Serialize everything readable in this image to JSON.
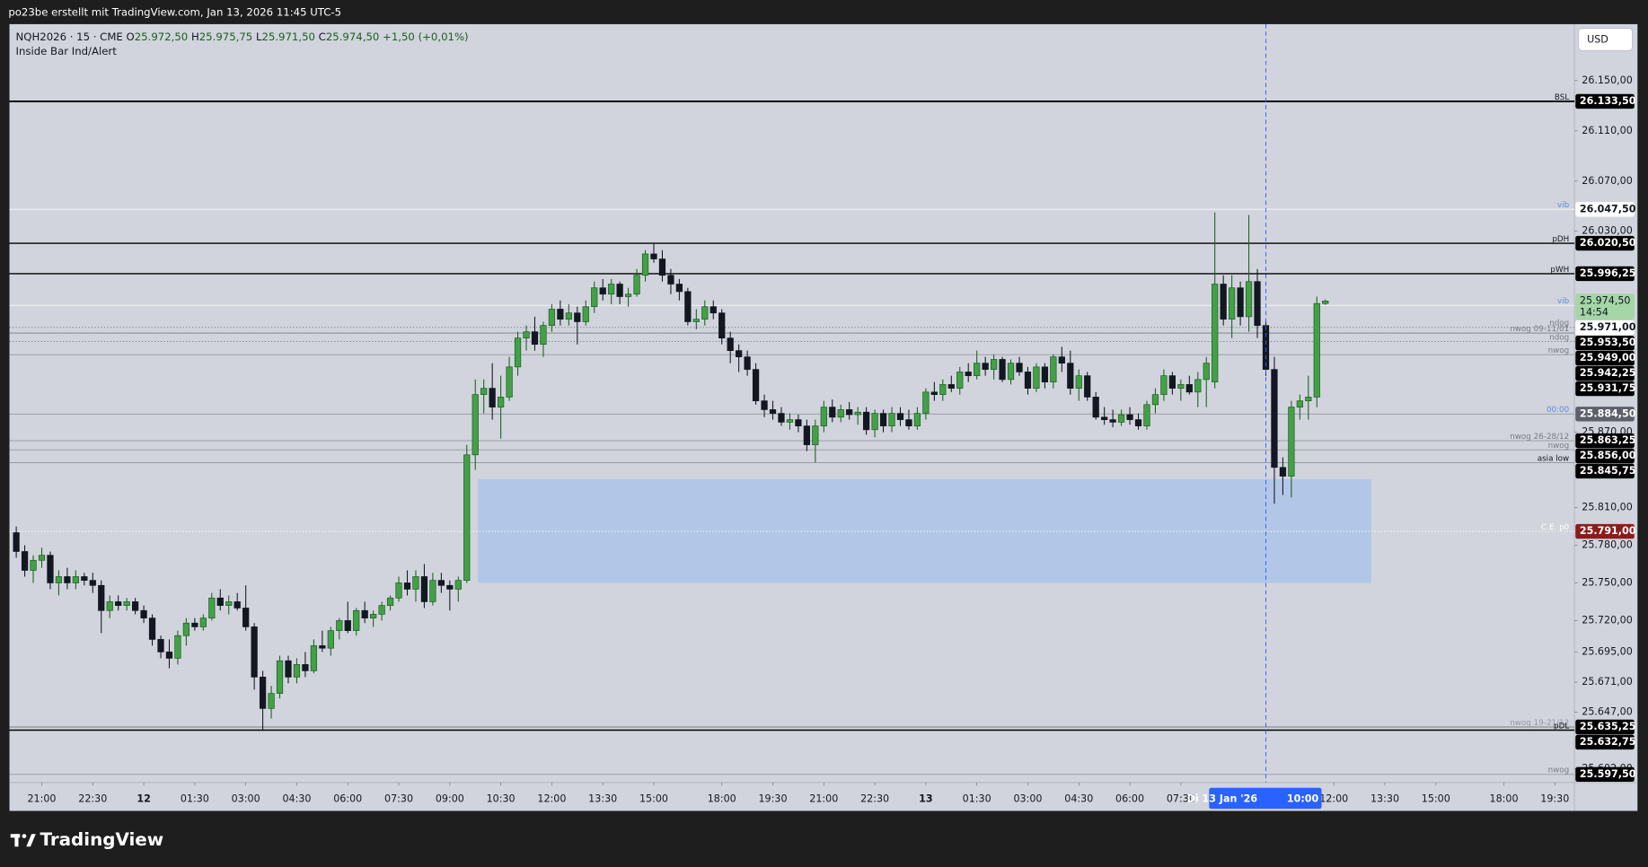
{
  "header": {
    "title": "po23be erstellt mit TradingView.com, Jan 13, 2026 11:45 UTC-5"
  },
  "legend": {
    "symbol": "NQH2026 · 15 · CME",
    "items": [
      {
        "key": "O",
        "value": "25.972,50"
      },
      {
        "key": "H",
        "value": "25.975,75"
      },
      {
        "key": "L",
        "value": "25.971,50"
      },
      {
        "key": "C",
        "value": "25.974,50"
      }
    ],
    "change": "+1,50 (+0,01%)",
    "indicator": "Inside Bar Ind/Alert"
  },
  "currency": "USD",
  "branding": "TradingView",
  "chart_data": {
    "type": "candlestick",
    "up_color": "#43a047",
    "down_color": "#131722",
    "grid": false,
    "open": [
      25790,
      25775,
      25760,
      25768,
      25772,
      25750,
      25755,
      25750,
      25755,
      25752,
      25748,
      25728,
      25735,
      25732,
      25735,
      25728,
      25722,
      25705,
      25695,
      25690,
      25708,
      25718,
      25715,
      25722,
      25738,
      25732,
      25735,
      25730,
      25715,
      25675,
      25650,
      25662,
      25688,
      25675,
      25685,
      25680,
      25700,
      25698,
      25712,
      25720,
      25712,
      25728,
      25722,
      25725,
      25732,
      25738,
      25750,
      25745,
      25755,
      25735,
      25752,
      25748,
      25745,
      25752,
      25852,
      25900,
      25905,
      25890,
      25898,
      25922,
      25945,
      25950,
      25940,
      25955,
      25968,
      25960,
      25965,
      25958,
      25970,
      25985,
      25980,
      25988,
      25978,
      25980,
      25995,
      26012,
      26008,
      25995,
      25988,
      25982,
      25958,
      25960,
      25970,
      25965,
      25945,
      25935,
      25930,
      25920,
      25895,
      25888,
      25885,
      25878,
      25880,
      25875,
      25860,
      25875,
      25890,
      25882,
      25888,
      25884,
      25886,
      25872,
      25885,
      25875,
      25885,
      25880,
      25875,
      25885,
      25902,
      25900,
      25908,
      25905,
      25918,
      25915,
      25925,
      25920,
      25928,
      25912,
      25925,
      25918,
      25905,
      25922,
      25910,
      25930,
      25925,
      25905,
      25915,
      25898,
      25882,
      25880,
      25878,
      25884,
      25880,
      25875,
      25892,
      25900,
      25915,
      25905,
      25908,
      25902,
      25912,
      25910,
      25988,
      25960,
      25985,
      25962,
      25990,
      25955,
      25920,
      25842,
      25835,
      25890,
      25895,
      25898,
      25972.5
    ],
    "high": [
      25795,
      25780,
      25772,
      25778,
      25775,
      25760,
      25762,
      25760,
      25758,
      25758,
      25752,
      25740,
      25740,
      25738,
      25738,
      25732,
      25725,
      25708,
      25705,
      25712,
      25722,
      25722,
      25725,
      25742,
      25745,
      25740,
      25742,
      25748,
      25718,
      25680,
      25668,
      25692,
      25692,
      25690,
      25695,
      25705,
      25712,
      25715,
      25722,
      25735,
      25730,
      25735,
      25728,
      25735,
      25740,
      25755,
      25760,
      25760,
      25765,
      25758,
      25758,
      25752,
      25755,
      25860,
      25912,
      25912,
      25925,
      25915,
      25930,
      25950,
      25955,
      25962,
      25958,
      25972,
      25975,
      25972,
      25970,
      25975,
      25990,
      25992,
      25992,
      25990,
      25985,
      26000,
      26015,
      26020,
      26015,
      26000,
      25992,
      25985,
      25968,
      25975,
      25975,
      25968,
      25950,
      25940,
      25935,
      25925,
      25900,
      25895,
      25890,
      25885,
      25884,
      25880,
      25880,
      25895,
      25896,
      25892,
      25894,
      25890,
      25890,
      25888,
      25888,
      25890,
      25890,
      25888,
      25890,
      25905,
      25910,
      25912,
      25915,
      25922,
      25925,
      25935,
      25930,
      25932,
      25930,
      25928,
      25930,
      25922,
      25925,
      25925,
      25932,
      25938,
      25935,
      25920,
      25918,
      25902,
      25890,
      25888,
      25888,
      25890,
      25885,
      25895,
      25905,
      25920,
      25918,
      25912,
      25915,
      25918,
      25930,
      26045,
      25995,
      25995,
      25990,
      26043,
      26000,
      25960,
      25930,
      25850,
      25895,
      25900,
      25915,
      25978,
      25975.75
    ],
    "low": [
      25770,
      25755,
      25750,
      25762,
      25745,
      25740,
      25745,
      25745,
      25748,
      25742,
      25710,
      25722,
      25728,
      25728,
      25725,
      25718,
      25700,
      25690,
      25682,
      25685,
      25700,
      25712,
      25712,
      25720,
      25728,
      25725,
      25728,
      25712,
      25665,
      25633,
      25642,
      25658,
      25670,
      25670,
      25675,
      25678,
      25695,
      25692,
      25705,
      25710,
      25708,
      25718,
      25715,
      25720,
      25728,
      25735,
      25740,
      25735,
      25730,
      25732,
      25742,
      25728,
      25735,
      25750,
      25840,
      25885,
      25880,
      25865,
      25895,
      25915,
      25935,
      25935,
      25930,
      25950,
      25955,
      25955,
      25940,
      25955,
      25965,
      25975,
      25972,
      25972,
      25970,
      25978,
      25990,
      26005,
      25990,
      25980,
      25975,
      25955,
      25952,
      25955,
      25960,
      25940,
      25925,
      25918,
      25915,
      25892,
      25882,
      25880,
      25875,
      25872,
      25870,
      25855,
      25846,
      25870,
      25878,
      25878,
      25880,
      25876,
      25868,
      25866,
      25870,
      25870,
      25875,
      25872,
      25872,
      25880,
      25895,
      25895,
      25902,
      25900,
      25910,
      25912,
      25915,
      25912,
      25910,
      25908,
      25915,
      25900,
      25902,
      25905,
      25905,
      25918,
      25900,
      25895,
      25895,
      25880,
      25876,
      25874,
      25875,
      25876,
      25872,
      25872,
      25885,
      25895,
      25900,
      25895,
      25900,
      25890,
      25890,
      25905,
      25955,
      25945,
      25955,
      25950,
      25945,
      25915,
      25813,
      25820,
      25818,
      25880,
      25880,
      25890,
      25971.5
    ],
    "close": [
      25775,
      25760,
      25768,
      25772,
      25750,
      25755,
      25750,
      25755,
      25752,
      25748,
      25728,
      25735,
      25732,
      25735,
      25728,
      25722,
      25705,
      25695,
      25690,
      25708,
      25718,
      25715,
      25722,
      25738,
      25732,
      25735,
      25730,
      25715,
      25675,
      25650,
      25662,
      25688,
      25675,
      25685,
      25680,
      25700,
      25698,
      25712,
      25720,
      25712,
      25728,
      25722,
      25725,
      25732,
      25738,
      25750,
      25745,
      25755,
      25735,
      25752,
      25748,
      25745,
      25752,
      25852,
      25900,
      25905,
      25890,
      25898,
      25922,
      25945,
      25950,
      25940,
      25955,
      25968,
      25960,
      25965,
      25958,
      25970,
      25985,
      25980,
      25988,
      25978,
      25980,
      25995,
      26012,
      26008,
      25995,
      25988,
      25982,
      25958,
      25960,
      25970,
      25965,
      25945,
      25935,
      25930,
      25920,
      25895,
      25888,
      25885,
      25878,
      25880,
      25875,
      25860,
      25875,
      25890,
      25882,
      25888,
      25884,
      25886,
      25872,
      25885,
      25875,
      25885,
      25880,
      25875,
      25885,
      25902,
      25900,
      25908,
      25905,
      25918,
      25915,
      25925,
      25920,
      25928,
      25912,
      25925,
      25918,
      25905,
      25922,
      25910,
      25930,
      25925,
      25905,
      25915,
      25898,
      25882,
      25880,
      25878,
      25884,
      25880,
      25875,
      25892,
      25900,
      25915,
      25905,
      25908,
      25902,
      25912,
      25925,
      25988,
      25960,
      25985,
      25962,
      25990,
      25955,
      25920,
      25842,
      25835,
      25890,
      25895,
      25898,
      25972.5,
      25974.5
    ],
    "xlim": [
      -0.8,
      183.3
    ],
    "ylim": [
      25591,
      26195
    ],
    "yticks": [
      {
        "value": 26150,
        "label": "26.150,00"
      },
      {
        "value": 26110,
        "label": "26.110,00"
      },
      {
        "value": 26070,
        "label": "26.070,00"
      },
      {
        "value": 26030,
        "label": "26.030,00"
      },
      {
        "value": 25870,
        "label": "25.870,00"
      },
      {
        "value": 25810,
        "label": "25.810,00"
      },
      {
        "value": 25780,
        "label": "25.780,00"
      },
      {
        "value": 25750,
        "label": "25.750,00"
      },
      {
        "value": 25720,
        "label": "25.720,00"
      },
      {
        "value": 25695,
        "label": "25.695,00"
      },
      {
        "value": 25671,
        "label": "25.671,00"
      },
      {
        "value": 25647,
        "label": "25.647,00"
      },
      {
        "value": 25602,
        "label": "25.602,00"
      }
    ],
    "xticks": [
      {
        "value": 3,
        "label": "21:00"
      },
      {
        "value": 9,
        "label": "22:30"
      },
      {
        "value": 15,
        "label": "12",
        "bold": true
      },
      {
        "value": 21,
        "label": "01:30"
      },
      {
        "value": 27,
        "label": "03:00"
      },
      {
        "value": 33,
        "label": "04:30"
      },
      {
        "value": 39,
        "label": "06:00"
      },
      {
        "value": 45,
        "label": "07:30"
      },
      {
        "value": 51,
        "label": "09:00"
      },
      {
        "value": 57,
        "label": "10:30"
      },
      {
        "value": 63,
        "label": "12:00"
      },
      {
        "value": 69,
        "label": "13:30"
      },
      {
        "value": 75,
        "label": "15:00"
      },
      {
        "value": 83,
        "label": "18:00"
      },
      {
        "value": 89,
        "label": "19:30"
      },
      {
        "value": 95,
        "label": "21:00"
      },
      {
        "value": 101,
        "label": "22:30"
      },
      {
        "value": 107,
        "label": "13",
        "bold": true
      },
      {
        "value": 113,
        "label": "01:30"
      },
      {
        "value": 119,
        "label": "03:00"
      },
      {
        "value": 125,
        "label": "04:30"
      },
      {
        "value": 131,
        "label": "06:00"
      },
      {
        "value": 137,
        "label": "07:30"
      },
      {
        "value": 155,
        "label": "12:00"
      },
      {
        "value": 161,
        "label": "13:30"
      },
      {
        "value": 167,
        "label": "15:00"
      },
      {
        "value": 175,
        "label": "18:00"
      },
      {
        "value": 181,
        "label": "19:30"
      }
    ],
    "levels": [
      {
        "name": "BSL",
        "value": 26133.5,
        "label": "26.133,50",
        "line_color": "#000000",
        "line_width": 1.6,
        "dash": "none",
        "tag_color": "#131722",
        "box_bg": "#000000",
        "box_text": "#ffffff"
      },
      {
        "name": "vib",
        "value": 26047.5,
        "label": "26.047,50",
        "line_color": "#eef0f5",
        "line_width": 1,
        "dash": "none",
        "tag_color": "#5b8be0",
        "box_bg": "#ffffff",
        "box_text": "#131722"
      },
      {
        "name": "pDH",
        "value": 26020.5,
        "label": "26.020,50",
        "line_color": "#000000",
        "line_width": 1.2,
        "dash": "none",
        "tag_color": "#131722",
        "box_bg": "#000000",
        "box_text": "#ffffff"
      },
      {
        "name": "pWH",
        "value": 25996.25,
        "label": "25.996,25",
        "line_color": "#000000",
        "line_width": 1.2,
        "dash": "none",
        "tag_color": "#131722",
        "box_bg": "#000000",
        "box_text": "#ffffff"
      },
      {
        "name": "vib",
        "value": 25971,
        "label": "25.971,00",
        "line_color": "#eef0f5",
        "line_width": 1,
        "dash": "none",
        "tag_color": "#5b8be0",
        "box_bg": "#ffffff",
        "box_text": "#131722"
      },
      {
        "name": "ndog",
        "value": 25953.5,
        "label": "25.953,50",
        "line_color": "#787b86",
        "line_width": 0.8,
        "dash": "1,2",
        "tag_color": "#787b86",
        "box_bg": "#000000",
        "box_text": "#ffffff"
      },
      {
        "name": "nwog 09-11/01",
        "value": 25949,
        "label": "25.949,00",
        "line_color": "#787b86",
        "line_width": 0.8,
        "dash": "none",
        "tag_color": "#787b86",
        "box_bg": "#000000",
        "box_text": "#ffffff"
      },
      {
        "name": "ndog",
        "value": 25942.25,
        "label": "25.942,25",
        "line_color": "#787b86",
        "line_width": 0.8,
        "dash": "1,2",
        "tag_color": "#787b86",
        "box_bg": "#000000",
        "box_text": "#ffffff"
      },
      {
        "name": "nwog",
        "value": 25931.75,
        "label": "25.931,75",
        "line_color": "#9598a1",
        "line_width": 0.8,
        "dash": "none",
        "tag_color": "#787b86",
        "box_bg": "#000000",
        "box_text": "#ffffff"
      },
      {
        "name": "00:00",
        "value": 25884.5,
        "label": "25.884,50",
        "line_color": "#9598a1",
        "line_width": 0.8,
        "dash": "none",
        "tag_color": "#5b8be0",
        "box_bg": "#5d606b",
        "box_text": "#ffffff"
      },
      {
        "name": "nwog 26-28/12",
        "value": 25863.25,
        "label": "25.863,25",
        "line_color": "#9598a1",
        "line_width": 0.8,
        "dash": "none",
        "tag_color": "#787b86",
        "box_bg": "#000000",
        "box_text": "#ffffff"
      },
      {
        "name": "nwog",
        "value": 25856,
        "label": "25.856,00",
        "line_color": "#9598a1",
        "line_width": 0.8,
        "dash": "none",
        "tag_color": "#787b86",
        "box_bg": "#000000",
        "box_text": "#ffffff"
      },
      {
        "name": "asia low",
        "value": 25845.75,
        "label": "25.845,75",
        "line_color": "#9598a1",
        "line_width": 0.8,
        "dash": "none",
        "tag_color": "#131722",
        "box_bg": "#000000",
        "box_text": "#ffffff"
      },
      {
        "name": "C.E. p0",
        "value": 25791,
        "label": "25.791,00",
        "line_color": "#ffffff",
        "line_width": 0.8,
        "dash": "1,2",
        "tag_color": "#ffffff",
        "box_bg": "#8b1c1c",
        "box_text": "#ffffff"
      },
      {
        "name": "nwog 19-21/12",
        "value": 25635.25,
        "label": "25.635,25",
        "line_color": "#787b86",
        "line_width": 0.8,
        "dash": "none",
        "tag_color": "#9598a1",
        "box_bg": "#000000",
        "box_text": "#ffffff"
      },
      {
        "name": "pDL",
        "value": 25632.75,
        "label": "25.632,75",
        "line_color": "#000000",
        "line_width": 1.2,
        "dash": "none",
        "tag_color": "#131722",
        "box_bg": "#000000",
        "box_text": "#ffffff"
      },
      {
        "name": "nwog",
        "value": 25597.5,
        "label": "25.597,50",
        "line_color": "#9598a1",
        "line_width": 0.8,
        "dash": "none",
        "tag_color": "#787b86",
        "box_bg": "#000000",
        "box_text": "#ffffff"
      }
    ],
    "last_price": {
      "value": 25974.5,
      "label": "25.974,50",
      "countdown": "14:54",
      "box_bg": "#a5d6a7"
    },
    "zone": {
      "top": 25832.75,
      "bottom": 25750,
      "from": 54.3,
      "to": 159.4,
      "color": "#adc4ea"
    },
    "crosshair": {
      "x": 147,
      "date_label": "Di 13 Jan '26",
      "time_label": "10:00",
      "color": "#2962ff"
    }
  }
}
